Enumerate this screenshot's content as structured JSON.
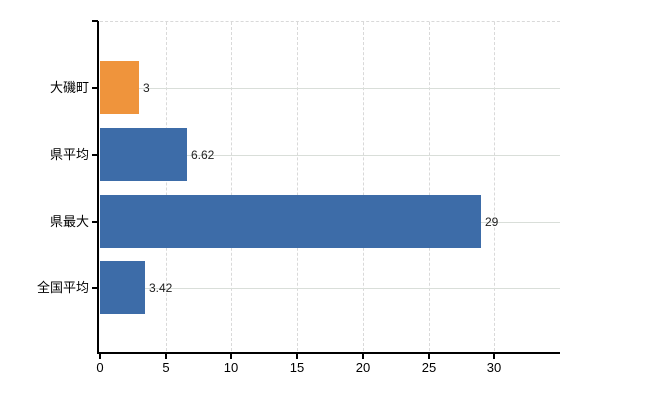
{
  "chart_data": {
    "type": "bar",
    "orientation": "horizontal",
    "title": "",
    "xlabel": "",
    "ylabel": "",
    "categories": [
      "大磯町",
      "県平均",
      "県最大",
      "全国平均"
    ],
    "values": [
      3,
      6.62,
      29,
      3.42
    ],
    "value_labels": [
      "3",
      "6.62",
      "29",
      "3.42"
    ],
    "bar_colors": [
      "#ef943c",
      "#3d6ca8",
      "#3d6ca8",
      "#3d6ca8"
    ],
    "x_ticks": [
      "0",
      "5",
      "10",
      "15",
      "20",
      "25",
      "30"
    ],
    "x_tick_values": [
      0,
      5,
      10,
      15,
      20,
      25,
      30
    ],
    "xlim": [
      0,
      35
    ],
    "grid": true,
    "legend_position": "none"
  },
  "colors": {
    "background": "#ffffff",
    "axis": "#000000",
    "vertical_gridline": "#d9d9d9",
    "horizontal_gridline": "#d9ded9",
    "top_border": "#d4d4d4",
    "text": "#000000",
    "value_label_text": "#222222",
    "bar_orange": "#ef943c",
    "bar_blue": "#3d6ca8"
  }
}
